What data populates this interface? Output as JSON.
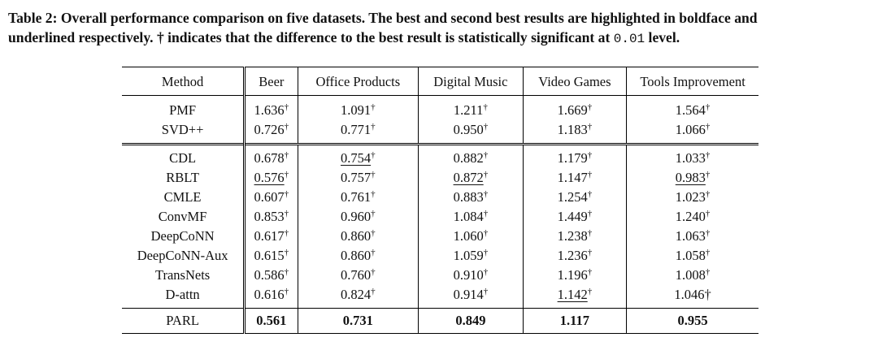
{
  "caption": {
    "line1": "Table 2: Overall performance comparison on five datasets. The best and second best results are highlighted in boldface and",
    "line2_pre": "underlined respectively. † indicates that the difference to the best result is statistically significant at ",
    "line2_num": "0.01",
    "line2_post": " level."
  },
  "table": {
    "headers": [
      "Method",
      "Beer",
      "Office Products",
      "Digital Music",
      "Video Games",
      "Tools Improvement"
    ],
    "groups": [
      {
        "rows": [
          {
            "method": "PMF",
            "cells": [
              {
                "v": "1.636",
                "dag": "†"
              },
              {
                "v": "1.091",
                "dag": "†"
              },
              {
                "v": "1.211",
                "dag": "†"
              },
              {
                "v": "1.669",
                "dag": "†"
              },
              {
                "v": "1.564",
                "dag": "†"
              }
            ]
          },
          {
            "method": "SVD++",
            "cells": [
              {
                "v": "0.726",
                "dag": "†"
              },
              {
                "v": "0.771",
                "dag": "†"
              },
              {
                "v": "0.950",
                "dag": "†"
              },
              {
                "v": "1.183",
                "dag": "†"
              },
              {
                "v": "1.066",
                "dag": "†"
              }
            ]
          }
        ]
      },
      {
        "rows": [
          {
            "method": "CDL",
            "cells": [
              {
                "v": "0.678",
                "dag": "†"
              },
              {
                "v": "0.754",
                "dag": "†",
                "underline": true
              },
              {
                "v": "0.882",
                "dag": "†"
              },
              {
                "v": "1.179",
                "dag": "†"
              },
              {
                "v": "1.033",
                "dag": "†"
              }
            ]
          },
          {
            "method": "RBLT",
            "cells": [
              {
                "v": "0.576",
                "dag": "†",
                "underline": true
              },
              {
                "v": "0.757",
                "dag": "†"
              },
              {
                "v": "0.872",
                "dag": "†",
                "underline": true
              },
              {
                "v": "1.147",
                "dag": "†"
              },
              {
                "v": "0.983",
                "dag": "†",
                "underline": true
              }
            ]
          },
          {
            "method": "CMLE",
            "cells": [
              {
                "v": "0.607",
                "dag": "†"
              },
              {
                "v": "0.761",
                "dag": "†"
              },
              {
                "v": "0.883",
                "dag": "†"
              },
              {
                "v": "1.254",
                "dag": "†"
              },
              {
                "v": "1.023",
                "dag": "†"
              }
            ]
          },
          {
            "method": "ConvMF",
            "cells": [
              {
                "v": "0.853",
                "dag": "†"
              },
              {
                "v": "0.960",
                "dag": "†"
              },
              {
                "v": "1.084",
                "dag": "†"
              },
              {
                "v": "1.449",
                "dag": "†"
              },
              {
                "v": "1.240",
                "dag": "†"
              }
            ]
          },
          {
            "method": "DeepCoNN",
            "cells": [
              {
                "v": "0.617",
                "dag": "†"
              },
              {
                "v": "0.860",
                "dag": "†"
              },
              {
                "v": "1.060",
                "dag": "†"
              },
              {
                "v": "1.238",
                "dag": "†"
              },
              {
                "v": "1.063",
                "dag": "†"
              }
            ]
          },
          {
            "method": "DeepCoNN-Aux",
            "cells": [
              {
                "v": "0.615",
                "dag": "†"
              },
              {
                "v": "0.860",
                "dag": "†"
              },
              {
                "v": "1.059",
                "dag": "†"
              },
              {
                "v": "1.236",
                "dag": "†"
              },
              {
                "v": "1.058",
                "dag": "†"
              }
            ]
          },
          {
            "method": "TransNets",
            "cells": [
              {
                "v": "0.586",
                "dag": "†"
              },
              {
                "v": "0.760",
                "dag": "†"
              },
              {
                "v": "0.910",
                "dag": "†"
              },
              {
                "v": "1.196",
                "dag": "†"
              },
              {
                "v": "1.008",
                "dag": "†"
              }
            ]
          },
          {
            "method": "D-attn",
            "cells": [
              {
                "v": "0.616",
                "dag": "†"
              },
              {
                "v": "0.824",
                "dag": "†"
              },
              {
                "v": "0.914",
                "dag": "†"
              },
              {
                "v": "1.142",
                "dag": "†",
                "underline": true
              },
              {
                "v": "1.046†",
                "dag": ""
              }
            ]
          }
        ]
      },
      {
        "bold": true,
        "rows": [
          {
            "method": "PARL",
            "cells": [
              {
                "v": "0.561",
                "dag": ""
              },
              {
                "v": "0.731",
                "dag": ""
              },
              {
                "v": "0.849",
                "dag": ""
              },
              {
                "v": "1.117",
                "dag": ""
              },
              {
                "v": "0.955",
                "dag": ""
              }
            ]
          }
        ]
      }
    ]
  }
}
